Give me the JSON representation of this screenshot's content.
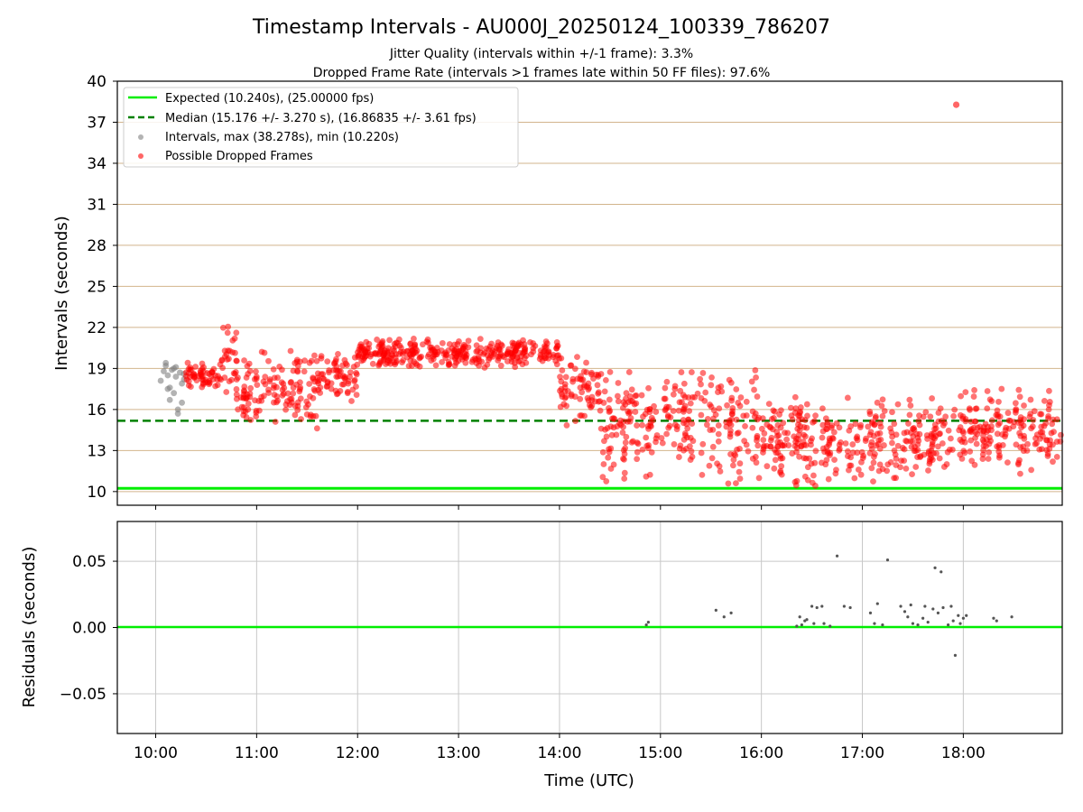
{
  "chart_data": [
    {
      "type": "scatter",
      "title": "Timestamp Intervals - AU000J_20250124_100339_786207",
      "subtitle_1": "Jitter Quality (intervals within +/-1 frame): 3.3%",
      "subtitle_2": "Dropped Frame Rate (intervals >1 frames late within 50 FF files): 97.6%",
      "ylabel": "Intervals (seconds)",
      "ylim": [
        9,
        40
      ],
      "yticks": [
        "10",
        "13",
        "16",
        "19",
        "22",
        "25",
        "28",
        "31",
        "34",
        "37",
        "40"
      ],
      "xlim_hours": [
        9.62,
        18.98
      ],
      "grid": "horizontal gridlines",
      "legend_position": "upper-left",
      "legend": {
        "expected": "Expected (10.240s), (25.00000 fps)",
        "median": "Median (15.176 +/- 3.270 s), (16.86835 +/- 3.61 fps)",
        "intervals": "Intervals, max (38.278s), min (10.220s)",
        "dropped": "Possible Dropped Frames"
      },
      "expected_interval": 10.24,
      "median_interval": 15.176,
      "max_interval": 38.278,
      "min_interval": 10.22,
      "colors": {
        "expected": "#00ee00",
        "median": "#008000",
        "intervals": "#808080",
        "dropped": "#ff0000",
        "grid": "#d2b48c"
      },
      "series": [
        {
          "name": "Intervals, max (38.278s), min (10.220s)",
          "x_hours": [
            10.05,
            10.08,
            10.1,
            10.12,
            10.14,
            10.16,
            10.18,
            10.2,
            10.22,
            10.24,
            10.26,
            10.28,
            10.1,
            10.14,
            10.18,
            10.22,
            10.26,
            10.12,
            10.2,
            10.28
          ],
          "y": [
            18.1,
            18.8,
            19.2,
            18.5,
            17.6,
            18.9,
            17.2,
            18.4,
            16.0,
            18.7,
            17.9,
            18.2,
            19.4,
            16.7,
            19.0,
            15.7,
            16.5,
            17.5,
            19.1,
            18.6
          ]
        },
        {
          "name": "Possible Dropped Frames",
          "segments": [
            {
              "x_hours": [
                10.3,
                10.65
              ],
              "y": [
                17.5,
                19.5
              ]
            },
            {
              "x_hours": [
                10.65,
                10.8
              ],
              "y": [
                17.0,
                23.3
              ]
            },
            {
              "x_hours": [
                10.8,
                11.6
              ],
              "y": [
                14.5,
                20.8
              ]
            },
            {
              "x_hours": [
                11.6,
                12.0
              ],
              "y": [
                16.5,
                20.3
              ]
            },
            {
              "x_hours": [
                12.0,
                14.0
              ],
              "y": [
                19.0,
                21.3
              ]
            },
            {
              "x_hours": [
                14.0,
                14.4
              ],
              "y": [
                14.8,
                20.0
              ]
            },
            {
              "x_hours": [
                14.4,
                16.0
              ],
              "y": [
                10.3,
                19.5
              ]
            },
            {
              "x_hours": [
                16.0,
                18.0
              ],
              "y": [
                10.2,
                17.2
              ]
            },
            {
              "x_hours": [
                18.0,
                18.98
              ],
              "y": [
                11.0,
                18.0
              ]
            }
          ],
          "outlier": {
            "x_hours": 17.93,
            "y": 38.278
          }
        }
      ]
    },
    {
      "type": "scatter",
      "ylabel": "Residuals (seconds)",
      "xlabel": "Time (UTC)",
      "ylim": [
        -0.08,
        0.08
      ],
      "yticks": [
        "0.05",
        "0.00",
        "−0.05"
      ],
      "xticks": [
        "10:00",
        "11:00",
        "12:00",
        "13:00",
        "14:00",
        "15:00",
        "16:00",
        "17:00",
        "18:00"
      ],
      "grid": "on",
      "x_hours": [
        14.86,
        14.88,
        15.55,
        15.63,
        15.7,
        16.35,
        16.38,
        16.4,
        16.43,
        16.45,
        16.5,
        16.52,
        16.55,
        16.6,
        16.62,
        16.68,
        16.75,
        16.82,
        16.88,
        17.08,
        17.12,
        17.15,
        17.2,
        17.25,
        17.38,
        17.42,
        17.45,
        17.48,
        17.5,
        17.55,
        17.6,
        17.62,
        17.65,
        17.7,
        17.72,
        17.75,
        17.78,
        17.8,
        17.85,
        17.88,
        17.9,
        17.92,
        17.95,
        17.97,
        18.0,
        18.03,
        18.3,
        18.33,
        18.48
      ],
      "y": [
        0.002,
        0.004,
        0.013,
        0.008,
        0.011,
        0.001,
        0.008,
        0.002,
        0.005,
        0.006,
        0.016,
        0.003,
        0.015,
        0.016,
        0.003,
        0.001,
        0.054,
        0.016,
        0.015,
        0.011,
        0.003,
        0.018,
        0.002,
        0.051,
        0.016,
        0.012,
        0.008,
        0.017,
        0.003,
        0.002,
        0.007,
        0.016,
        0.004,
        0.014,
        0.045,
        0.011,
        0.042,
        0.015,
        0.002,
        0.016,
        0.005,
        -0.021,
        0.009,
        0.003,
        0.007,
        0.009,
        0.007,
        0.005,
        0.008
      ]
    }
  ]
}
